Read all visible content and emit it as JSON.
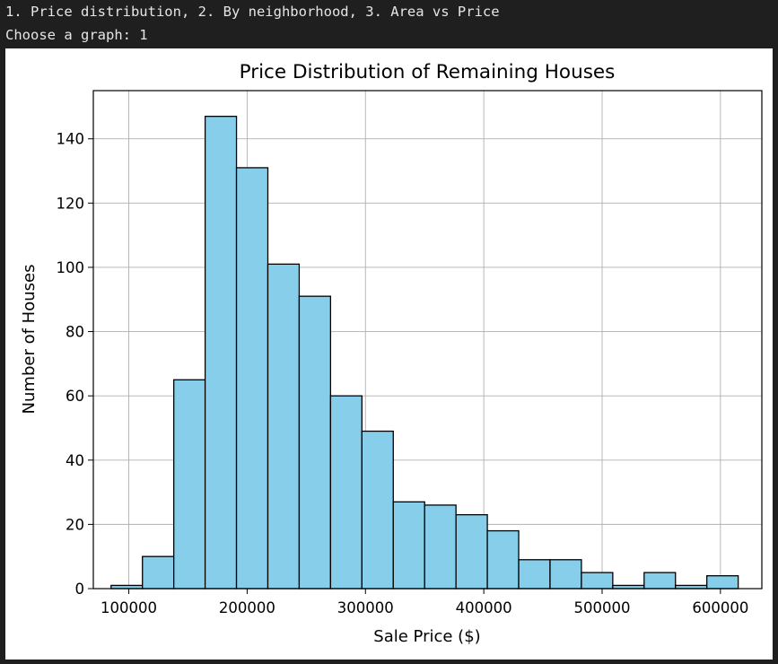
{
  "console": {
    "line1": "1. Price distribution, 2. By neighborhood, 3. Area vs Price",
    "line2": "Choose a graph: 1"
  },
  "colors": {
    "console_bg": "#1f1f1f",
    "console_text": "#e6e6e6",
    "bar_fill": "#87ceeb",
    "bar_edge": "#000000",
    "grid": "#b0b0b0"
  },
  "chart_data": {
    "type": "bar",
    "title": "Price Distribution of Remaining Houses",
    "xlabel": "Sale Price ($)",
    "ylabel": "Number of Houses",
    "xlim": [
      70000,
      635000
    ],
    "ylim": [
      0,
      155
    ],
    "grid": true,
    "x_ticks": [
      100000,
      200000,
      300000,
      400000,
      500000,
      600000
    ],
    "y_ticks": [
      0,
      20,
      40,
      60,
      80,
      100,
      120,
      140
    ],
    "bin_edges": [
      85000,
      111500,
      138000,
      164500,
      191000,
      217500,
      244000,
      270500,
      297000,
      323500,
      350000,
      376500,
      403000,
      429500,
      456000,
      482500,
      509000,
      535500,
      562000,
      588500,
      615000
    ],
    "values": [
      1,
      10,
      65,
      147,
      131,
      101,
      91,
      60,
      49,
      27,
      26,
      23,
      18,
      9,
      9,
      5,
      1,
      5,
      1,
      4
    ]
  }
}
